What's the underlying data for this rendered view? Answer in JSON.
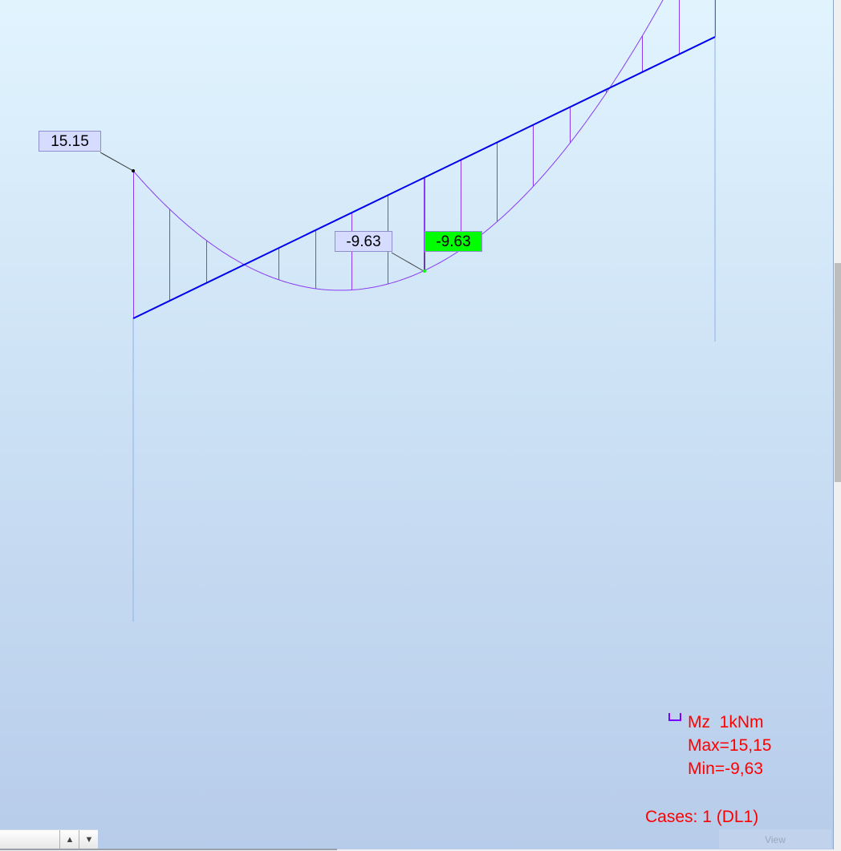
{
  "diagram": {
    "labels": {
      "max_label": "15.15",
      "min_label": "-9.63",
      "selected_label": "-9.63"
    },
    "colors": {
      "beam": "#0000ee",
      "diagram": "#8a3cf5",
      "column": "#8fb0f0",
      "selected": "#00ff00",
      "legend_text": "#ff0000"
    }
  },
  "legend": {
    "quantity": "Mz  1kNm",
    "max": "Max=15,15",
    "min": "Min=-9,63",
    "cases": "Cases: 1 (DL1)"
  },
  "bottom": {
    "spin_up": "▲",
    "spin_down": "▼",
    "view_button": "View"
  }
}
